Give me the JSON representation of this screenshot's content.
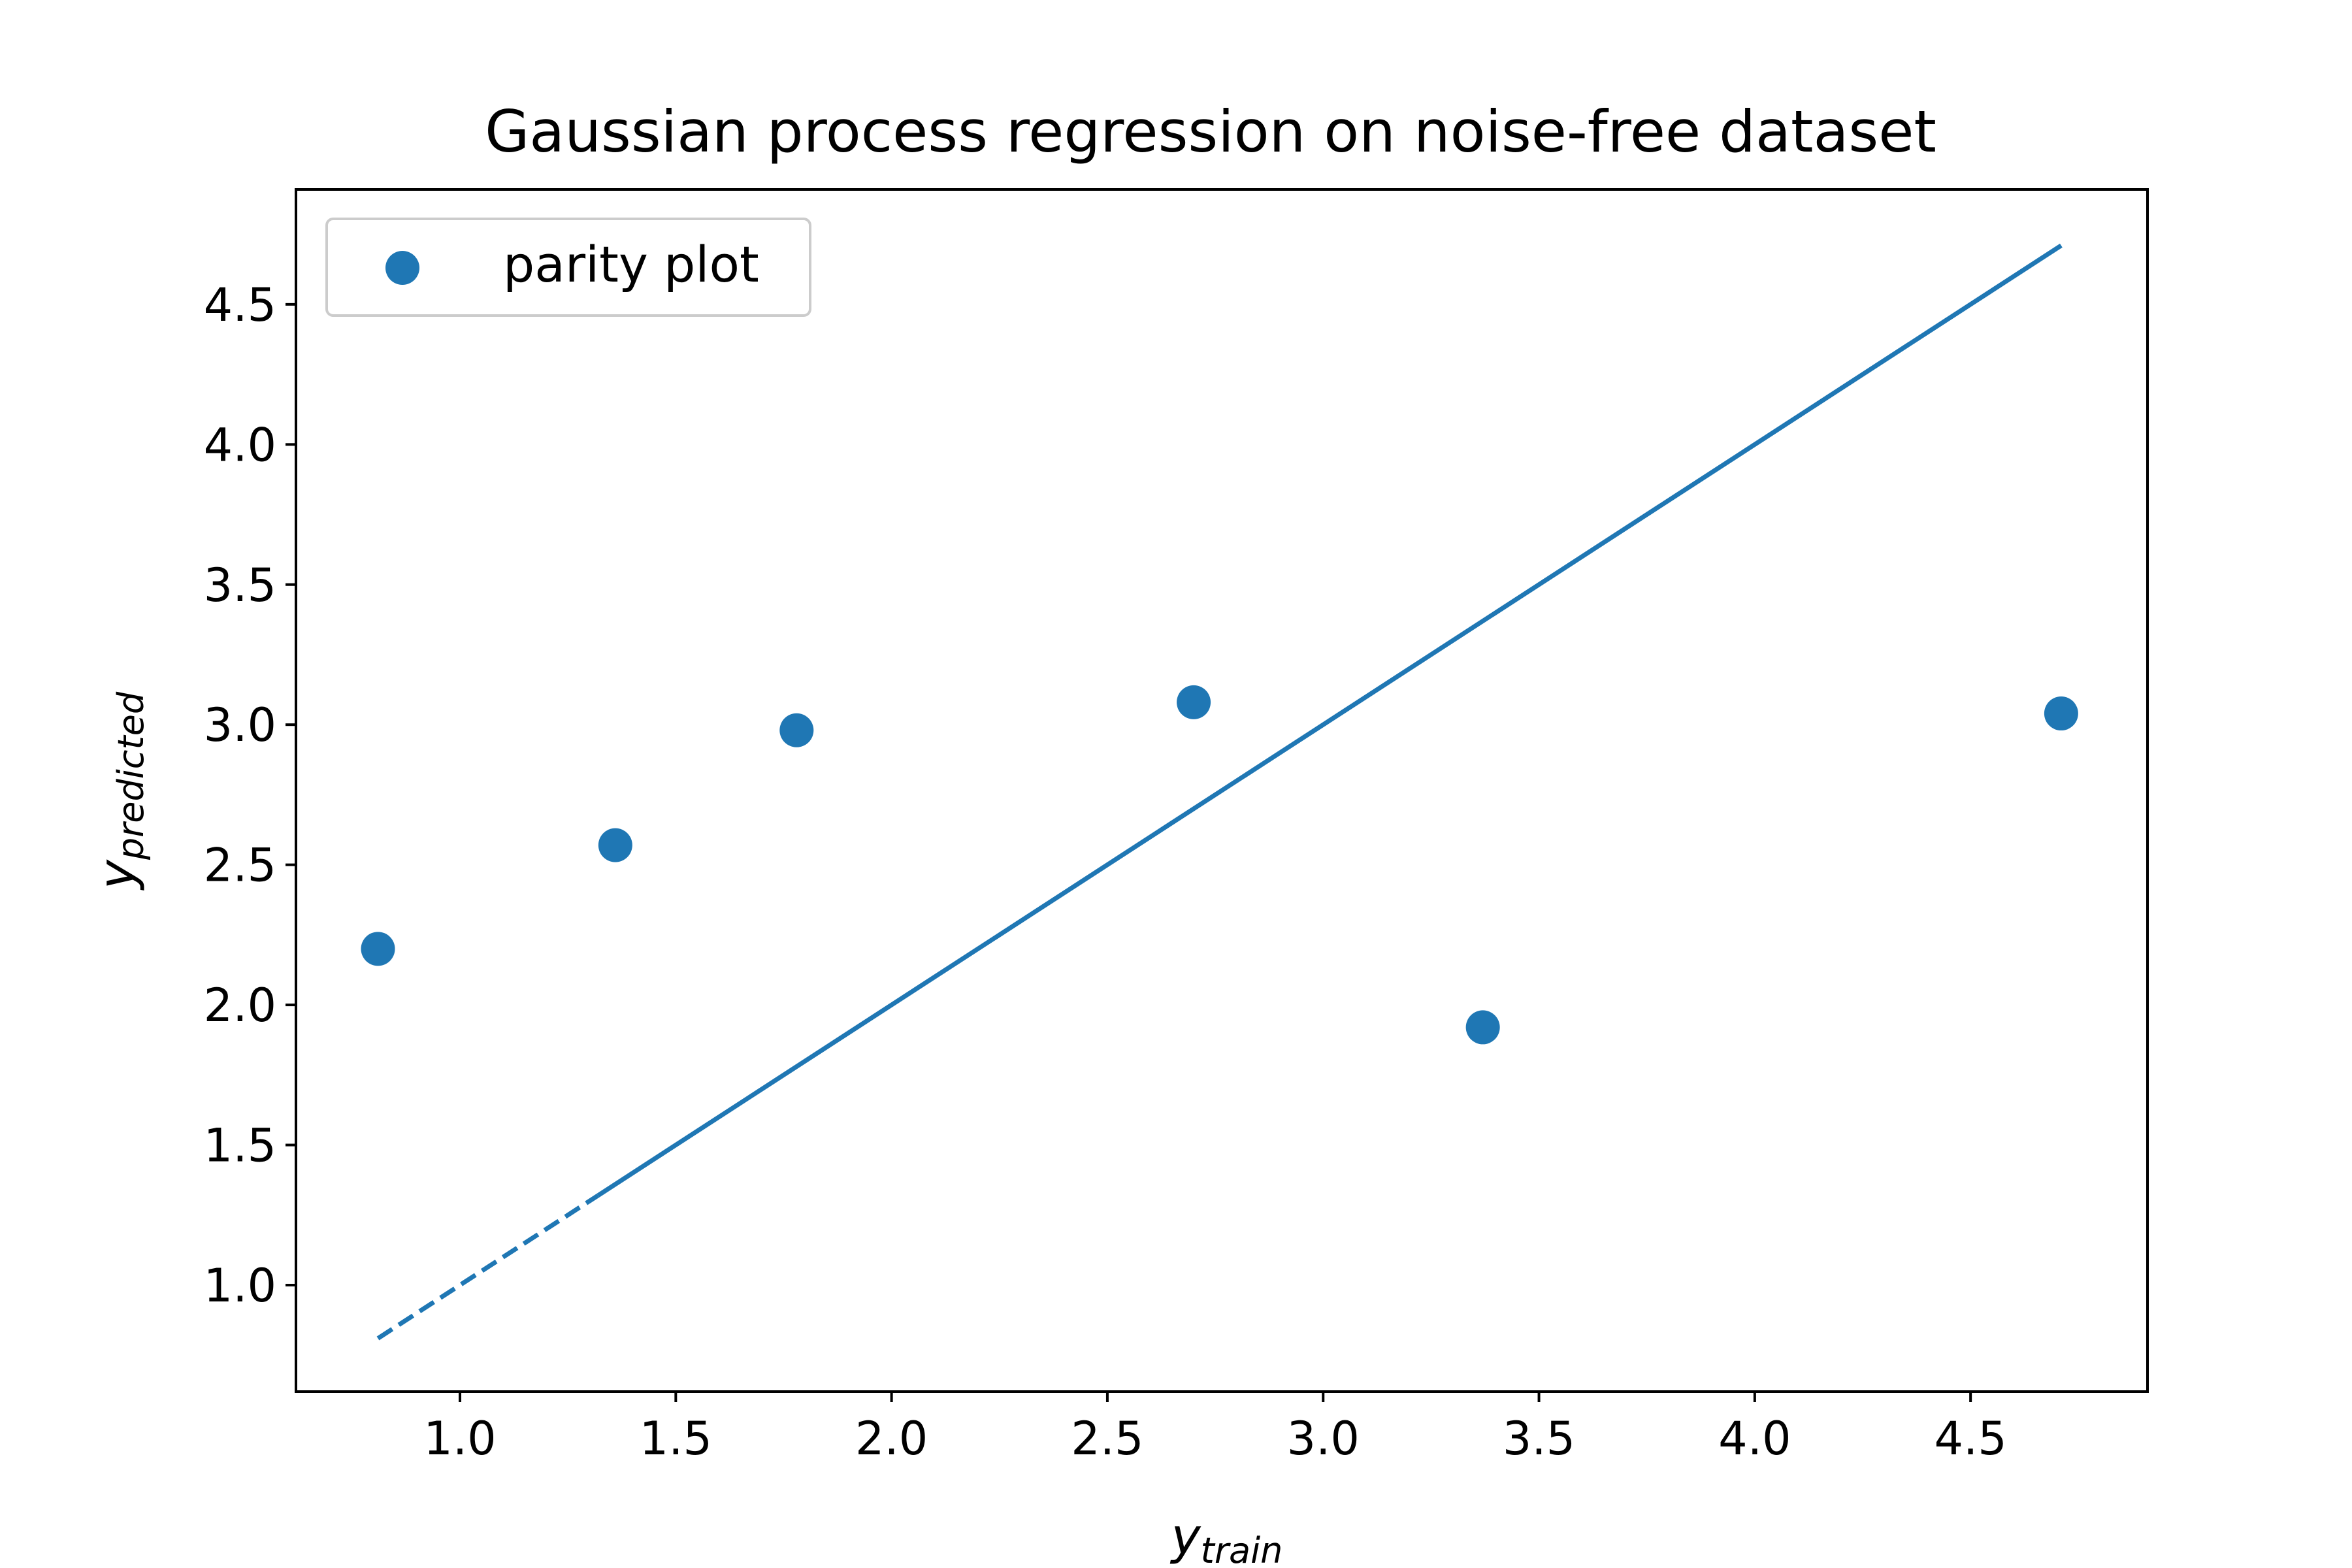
{
  "chart_data": {
    "type": "scatter",
    "title": "Gaussian process regression on noise-free dataset",
    "xlabel": {
      "base": "y",
      "subscript": "train"
    },
    "ylabel": {
      "base": "y",
      "subscript": "predicted"
    },
    "xlim": [
      0.62,
      4.91
    ],
    "ylim": [
      0.62,
      4.91
    ],
    "xticks": [
      {
        "value": 1.0,
        "label": "1.0"
      },
      {
        "value": 1.5,
        "label": "1.5"
      },
      {
        "value": 2.0,
        "label": "2.0"
      },
      {
        "value": 2.5,
        "label": "2.5"
      },
      {
        "value": 3.0,
        "label": "3.0"
      },
      {
        "value": 3.5,
        "label": "3.5"
      },
      {
        "value": 4.0,
        "label": "4.0"
      },
      {
        "value": 4.5,
        "label": "4.5"
      }
    ],
    "yticks": [
      {
        "value": 1.0,
        "label": "1.0"
      },
      {
        "value": 1.5,
        "label": "1.5"
      },
      {
        "value": 2.0,
        "label": "2.0"
      },
      {
        "value": 2.5,
        "label": "2.5"
      },
      {
        "value": 3.0,
        "label": "3.0"
      },
      {
        "value": 3.5,
        "label": "3.5"
      },
      {
        "value": 4.0,
        "label": "4.0"
      },
      {
        "value": 4.5,
        "label": "4.5"
      }
    ],
    "grid": false,
    "legend": {
      "placement": "upper-left",
      "entries": [
        "parity plot"
      ]
    },
    "series": [
      {
        "name": "parity plot",
        "kind": "scatter",
        "color": "#1f77b4",
        "points": [
          {
            "x": 0.81,
            "y": 2.2
          },
          {
            "x": 1.36,
            "y": 2.57
          },
          {
            "x": 1.78,
            "y": 2.98
          },
          {
            "x": 2.7,
            "y": 3.08
          },
          {
            "x": 3.37,
            "y": 1.92
          },
          {
            "x": 4.71,
            "y": 3.04
          }
        ]
      },
      {
        "kind": "line",
        "color": "#1f77b4",
        "style": "dashed",
        "points": [
          {
            "x": 0.81,
            "y": 0.81
          },
          {
            "x": 1.32,
            "y": 1.32
          }
        ]
      },
      {
        "kind": "line",
        "color": "#1f77b4",
        "style": "solid",
        "points": [
          {
            "x": 1.32,
            "y": 1.32
          },
          {
            "x": 4.71,
            "y": 4.71
          }
        ]
      }
    ]
  }
}
